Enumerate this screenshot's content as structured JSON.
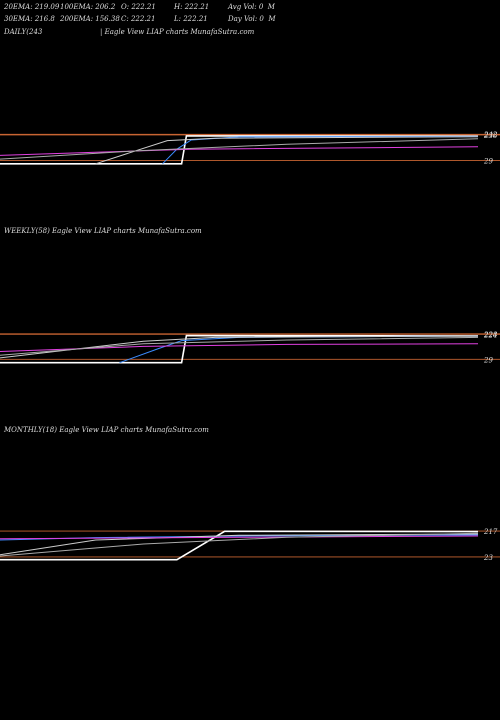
{
  "header": {
    "row1": {
      "ema20": "20EMA: 219.09",
      "ema100": "100EMA: 206.2",
      "open": "O: 222.21",
      "high": "H: 222.21",
      "avgvol": "Avg Vol: 0  M"
    },
    "row2": {
      "ema30": "30EMA: 216.8",
      "ema200": "200EMA: 156.38",
      "close": "C: 222.21",
      "low": "L: 222.21",
      "dayvol": "Day Vol: 0  M"
    }
  },
  "panels": [
    {
      "id": "daily",
      "caption_left": "DAILY(243",
      "caption_right": "| Eagle   View  LIAP charts MunafaSutra.com",
      "levels_text": [
        "242",
        "236",
        "29"
      ]
    },
    {
      "id": "weekly",
      "caption_left": "WEEKLY(58) Eagle   View  LIAP charts MunafaSutra.com",
      "caption_right": "",
      "levels_text": [
        "228",
        "224",
        "29"
      ]
    },
    {
      "id": "monthly",
      "caption_left": "MONTHLY(18) Eagle   View  LIAP charts MunafaSutra.com",
      "caption_right": "",
      "levels_text": [
        "217",
        "23"
      ]
    }
  ],
  "colors": {
    "background": "#000000",
    "price": "#ffffff",
    "ema20": "#3b8cff",
    "ema30": "#cccccc",
    "ema100": "#e040e0",
    "ema200": "#aaaaaa",
    "level_line": "#c86432"
  },
  "chart_data": [
    {
      "type": "line",
      "title": "DAILY",
      "x_range": [
        0,
        100
      ],
      "ylim": [
        0,
        260
      ],
      "levels": [
        242,
        236,
        29
      ],
      "series": [
        {
          "key": "price",
          "x": [
            0,
            38,
            39,
            100
          ],
          "values": [
            2,
            2,
            228,
            226
          ]
        },
        {
          "key": "ema20",
          "x": [
            34,
            37,
            40,
            50,
            100
          ],
          "values": [
            2,
            120,
            195,
            220,
            224
          ]
        },
        {
          "key": "ema30",
          "x": [
            20,
            35,
            45,
            100
          ],
          "values": [
            2,
            190,
            210,
            222
          ]
        },
        {
          "key": "ema100",
          "x": [
            0,
            20,
            40,
            100
          ],
          "values": [
            70,
            95,
            120,
            140
          ]
        },
        {
          "key": "ema200",
          "x": [
            0,
            30,
            60,
            100
          ],
          "values": [
            40,
            110,
            160,
            205
          ]
        }
      ]
    },
    {
      "type": "line",
      "title": "WEEKLY",
      "x_range": [
        0,
        100
      ],
      "ylim": [
        0,
        250
      ],
      "levels": [
        228,
        224,
        29
      ],
      "series": [
        {
          "key": "price",
          "x": [
            0,
            38,
            39,
            100
          ],
          "values": [
            2,
            2,
            214,
            212
          ]
        },
        {
          "key": "ema20",
          "x": [
            25,
            33,
            38,
            50,
            100
          ],
          "values": [
            2,
            110,
            175,
            200,
            212
          ]
        },
        {
          "key": "ema30",
          "x": [
            0,
            30,
            45,
            100
          ],
          "values": [
            40,
            170,
            200,
            212
          ]
        },
        {
          "key": "ema100",
          "x": [
            0,
            30,
            60,
            100
          ],
          "values": [
            90,
            130,
            145,
            150
          ]
        },
        {
          "key": "ema200",
          "x": [
            0,
            30,
            60,
            100
          ],
          "values": [
            60,
            150,
            180,
            200
          ]
        }
      ]
    },
    {
      "type": "line",
      "title": "MONTHLY",
      "x_range": [
        0,
        100
      ],
      "ylim": [
        0,
        240
      ],
      "levels": [
        217,
        23
      ],
      "series": [
        {
          "key": "price",
          "x": [
            0,
            37,
            47,
            100
          ],
          "values": [
            2,
            2,
            215,
            213
          ]
        },
        {
          "key": "ema20",
          "x": [
            0,
            20,
            50,
            100
          ],
          "values": [
            150,
            168,
            180,
            188
          ]
        },
        {
          "key": "ema30",
          "x": [
            0,
            20,
            50,
            100
          ],
          "values": [
            40,
            150,
            185,
            195
          ]
        },
        {
          "key": "ema100",
          "x": [
            0,
            50,
            100
          ],
          "values": [
            160,
            170,
            180
          ]
        },
        {
          "key": "ema200",
          "x": [
            0,
            30,
            60,
            100
          ],
          "values": [
            30,
            120,
            170,
            200
          ]
        }
      ]
    }
  ]
}
